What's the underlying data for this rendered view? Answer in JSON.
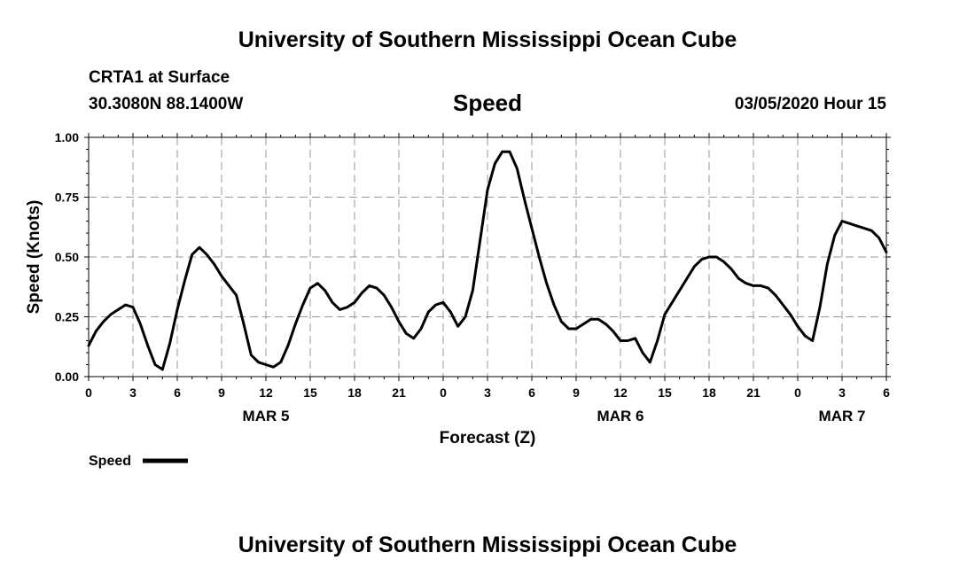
{
  "header": {
    "top_title": "University of Southern Mississippi Ocean Cube",
    "station": "CRTA1 at Surface",
    "coords": "30.3080N 88.1400W",
    "chart_name": "Speed",
    "date": "03/05/2020 Hour 15",
    "bottom_title": "University of Southern Mississippi Ocean Cube"
  },
  "chart_data": {
    "type": "line",
    "title": "Speed",
    "xlabel": "Forecast (Z)",
    "ylabel": "Speed (Knots)",
    "xlim": [
      0,
      54
    ],
    "ylim": [
      0,
      1
    ],
    "grid": true,
    "y_ticks": [
      0,
      0.25,
      0.5,
      0.75,
      1.0
    ],
    "y_tick_labels": [
      "0.00",
      "0.25",
      "0.50",
      "0.75",
      "1.00"
    ],
    "x_ticks": [
      0,
      3,
      6,
      9,
      12,
      15,
      18,
      21,
      24,
      27,
      30,
      33,
      36,
      39,
      42,
      45,
      48,
      51,
      54
    ],
    "x_tick_labels": [
      "0",
      "3",
      "6",
      "9",
      "12",
      "15",
      "18",
      "21",
      "0",
      "3",
      "6",
      "9",
      "12",
      "15",
      "18",
      "21",
      "0",
      "3",
      "6"
    ],
    "day_labels": [
      {
        "x": 12,
        "label": "MAR 5"
      },
      {
        "x": 36,
        "label": "MAR 6"
      },
      {
        "x": 51,
        "label": "MAR 7"
      }
    ],
    "legend": {
      "label": "Speed",
      "position": "bottom-left"
    },
    "series": [
      {
        "name": "Speed",
        "color": "#000000",
        "x": [
          0,
          0.5,
          1,
          1.5,
          2,
          2.5,
          3,
          3.5,
          4,
          4.5,
          5,
          5.5,
          6,
          6.5,
          7,
          7.5,
          8,
          8.5,
          9,
          9.5,
          10,
          10.5,
          11,
          11.5,
          12,
          12.5,
          13,
          13.5,
          14,
          14.5,
          15,
          15.5,
          16,
          16.5,
          17,
          17.5,
          18,
          18.5,
          19,
          19.5,
          20,
          20.5,
          21,
          21.5,
          22,
          22.5,
          23,
          23.5,
          24,
          24.5,
          25,
          25.5,
          26,
          26.5,
          27,
          27.5,
          28,
          28.5,
          29,
          29.5,
          30,
          30.5,
          31,
          31.5,
          32,
          32.5,
          33,
          33.5,
          34,
          34.5,
          35,
          35.5,
          36,
          36.5,
          37,
          37.5,
          38,
          38.5,
          39,
          39.5,
          40,
          40.5,
          41,
          41.5,
          42,
          42.5,
          43,
          43.5,
          44,
          44.5,
          45,
          45.5,
          46,
          46.5,
          47,
          47.5,
          48,
          48.5,
          49,
          49.5,
          50,
          50.5,
          51,
          51.5,
          52,
          52.5,
          53,
          53.5,
          54
        ],
        "values": [
          0.13,
          0.19,
          0.23,
          0.26,
          0.28,
          0.3,
          0.29,
          0.22,
          0.13,
          0.05,
          0.03,
          0.14,
          0.28,
          0.4,
          0.51,
          0.54,
          0.51,
          0.47,
          0.42,
          0.38,
          0.34,
          0.22,
          0.09,
          0.06,
          0.05,
          0.04,
          0.06,
          0.13,
          0.22,
          0.3,
          0.37,
          0.39,
          0.36,
          0.31,
          0.28,
          0.29,
          0.31,
          0.35,
          0.38,
          0.37,
          0.34,
          0.29,
          0.23,
          0.18,
          0.16,
          0.2,
          0.27,
          0.3,
          0.31,
          0.27,
          0.21,
          0.25,
          0.36,
          0.57,
          0.78,
          0.89,
          0.94,
          0.94,
          0.87,
          0.74,
          0.62,
          0.5,
          0.39,
          0.3,
          0.23,
          0.2,
          0.2,
          0.22,
          0.24,
          0.24,
          0.22,
          0.19,
          0.15,
          0.15,
          0.16,
          0.1,
          0.06,
          0.15,
          0.26,
          0.31,
          0.36,
          0.41,
          0.46,
          0.49,
          0.5,
          0.5,
          0.48,
          0.45,
          0.41,
          0.39,
          0.38,
          0.38,
          0.37,
          0.34,
          0.3,
          0.26,
          0.21,
          0.17,
          0.15,
          0.29,
          0.47,
          0.59,
          0.65,
          0.64,
          0.63,
          0.62,
          0.61,
          0.58,
          0.52
        ]
      }
    ]
  }
}
